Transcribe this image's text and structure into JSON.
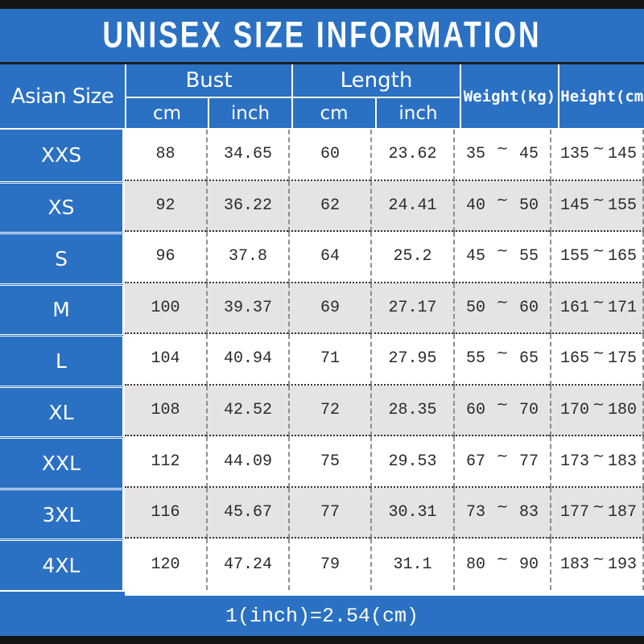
{
  "title": "UNISEX SIZE INFORMATION",
  "header": {
    "corner": "Asian Size",
    "bust": "Bust",
    "length": "Length",
    "unit_cm": "cm",
    "unit_inch": "inch",
    "weight": "Weight(kg)",
    "height": "Height(cm)"
  },
  "symbols": {
    "tilde": "~"
  },
  "rows": [
    {
      "size": "XXS",
      "bust_cm": "88",
      "bust_inch": "34.65",
      "length_cm": "60",
      "length_inch": "23.62",
      "weight_min": "35",
      "weight_max": "45",
      "height_min": "135",
      "height_max": "145"
    },
    {
      "size": "XS",
      "bust_cm": "92",
      "bust_inch": "36.22",
      "length_cm": "62",
      "length_inch": "24.41",
      "weight_min": "40",
      "weight_max": "50",
      "height_min": "145",
      "height_max": "155"
    },
    {
      "size": "S",
      "bust_cm": "96",
      "bust_inch": "37.8",
      "length_cm": "64",
      "length_inch": "25.2",
      "weight_min": "45",
      "weight_max": "55",
      "height_min": "155",
      "height_max": "165"
    },
    {
      "size": "M",
      "bust_cm": "100",
      "bust_inch": "39.37",
      "length_cm": "69",
      "length_inch": "27.17",
      "weight_min": "50",
      "weight_max": "60",
      "height_min": "161",
      "height_max": "171"
    },
    {
      "size": "L",
      "bust_cm": "104",
      "bust_inch": "40.94",
      "length_cm": "71",
      "length_inch": "27.95",
      "weight_min": "55",
      "weight_max": "65",
      "height_min": "165",
      "height_max": "175"
    },
    {
      "size": "XL",
      "bust_cm": "108",
      "bust_inch": "42.52",
      "length_cm": "72",
      "length_inch": "28.35",
      "weight_min": "60",
      "weight_max": "70",
      "height_min": "170",
      "height_max": "180"
    },
    {
      "size": "XXL",
      "bust_cm": "112",
      "bust_inch": "44.09",
      "length_cm": "75",
      "length_inch": "29.53",
      "weight_min": "67",
      "weight_max": "77",
      "height_min": "173",
      "height_max": "183"
    },
    {
      "size": "3XL",
      "bust_cm": "116",
      "bust_inch": "45.67",
      "length_cm": "77",
      "length_inch": "30.31",
      "weight_min": "73",
      "weight_max": "83",
      "height_min": "177",
      "height_max": "187"
    },
    {
      "size": "4XL",
      "bust_cm": "120",
      "bust_inch": "47.24",
      "length_cm": "79",
      "length_inch": "31.1",
      "weight_min": "80",
      "weight_max": "90",
      "height_min": "183",
      "height_max": "193"
    }
  ],
  "footer": {
    "note": "1(inch)=2.54(cm)"
  },
  "colors": {
    "blue": "#2b71c3",
    "row-alt": "#e5e3e4",
    "edge-bar": "#141414",
    "divider-dark": "#1e1e1e",
    "data-text": "#2b2b2b",
    "dash-gray": "#8f8f8f"
  },
  "chart_data": {
    "type": "table",
    "title": "UNISEX SIZE INFORMATION",
    "columns": [
      "Asian Size",
      "Bust cm",
      "Bust inch",
      "Length cm",
      "Length inch",
      "Weight(kg)",
      "Height(cm)"
    ],
    "rows": [
      [
        "XXS",
        88,
        34.65,
        60,
        23.62,
        "35~45",
        "135~145"
      ],
      [
        "XS",
        92,
        36.22,
        62,
        24.41,
        "40~50",
        "145~155"
      ],
      [
        "S",
        96,
        37.8,
        64,
        25.2,
        "45~55",
        "155~165"
      ],
      [
        "M",
        100,
        39.37,
        69,
        27.17,
        "50~60",
        "161~171"
      ],
      [
        "L",
        104,
        40.94,
        71,
        27.95,
        "55~65",
        "165~175"
      ],
      [
        "XL",
        108,
        42.52,
        72,
        28.35,
        "60~70",
        "170~180"
      ],
      [
        "XXL",
        112,
        44.09,
        75,
        29.53,
        "67~77",
        "173~183"
      ],
      [
        "3XL",
        116,
        45.67,
        77,
        30.31,
        "73~83",
        "177~187"
      ],
      [
        "4XL",
        120,
        47.24,
        79,
        31.1,
        "80~90",
        "183~193"
      ]
    ],
    "note": "1(inch)=2.54(cm)",
    "layout": {
      "header_groups": [
        "Bust",
        "Length"
      ],
      "group_subcolumns": [
        "cm",
        "inch"
      ],
      "alternating_row_shading": true
    }
  }
}
